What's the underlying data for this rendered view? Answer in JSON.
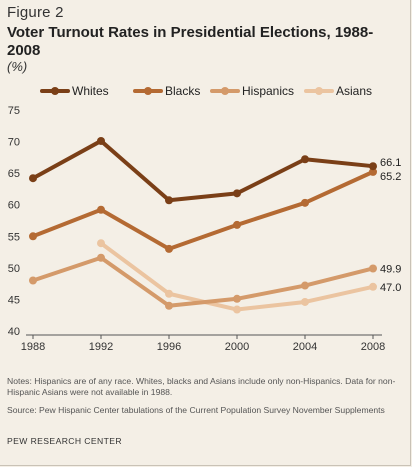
{
  "figure_label": "Figure 2",
  "colors": {
    "background": "#f4efe6",
    "whites": "#7a3f17",
    "blacks": "#b46a33",
    "hispanics": "#d49a6a",
    "asians": "#ebc4a0",
    "grid": "#d9d3c8"
  },
  "chart_data": {
    "type": "line",
    "title": "Voter Turnout Rates in Presidential Elections, 1988-2008",
    "unit": "(%)",
    "xlabel": "",
    "ylabel": "",
    "x": [
      "1988",
      "1992",
      "1996",
      "2000",
      "2004",
      "2008"
    ],
    "x_ticks": [
      "1988",
      "1992",
      "1996",
      "2000",
      "2004",
      "2008"
    ],
    "ylim": [
      40,
      75
    ],
    "y_ticks": [
      "40",
      "45",
      "50",
      "55",
      "60",
      "65",
      "70",
      "75"
    ],
    "grid": false,
    "legend_position": "top",
    "series": [
      {
        "name": "Whites",
        "color_key": "whites",
        "values": [
          64.2,
          70.1,
          60.7,
          61.8,
          67.2,
          66.1
        ],
        "end_label": "66.1"
      },
      {
        "name": "Blacks",
        "color_key": "blacks",
        "values": [
          55.0,
          59.2,
          53.0,
          56.8,
          60.3,
          65.2
        ],
        "end_label": "65.2"
      },
      {
        "name": "Hispanics",
        "color_key": "hispanics",
        "values": [
          48.0,
          51.6,
          44.0,
          45.1,
          47.2,
          49.9
        ],
        "end_label": "49.9"
      },
      {
        "name": "Asians",
        "color_key": "asians",
        "values": [
          null,
          53.9,
          45.9,
          43.4,
          44.6,
          47.0
        ],
        "end_label": "47.0"
      }
    ]
  },
  "notes": "Notes: Hispanics are of any race. Whites, blacks and Asians include only non-Hispanics. Data for non-Hispanic Asians were not available in 1988.",
  "source": "Source: Pew Hispanic Center tabulations of the Current Population Survey November Supplements",
  "organization": "PEW RESEARCH CENTER"
}
